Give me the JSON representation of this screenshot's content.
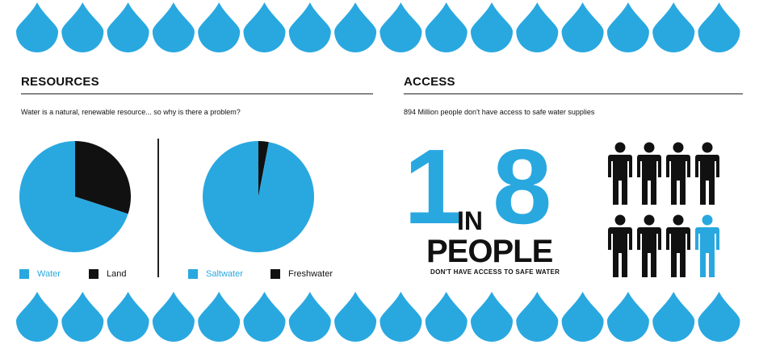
{
  "colors": {
    "water": "#29a8e0",
    "land": "#111111",
    "text": "#111111"
  },
  "icons": {
    "drop": "water-drop-icon",
    "person": "person-icon"
  },
  "resources": {
    "heading": "RESOURCES",
    "subtitle": "Water is a natural, renewable resource... so why is there a problem?"
  },
  "access": {
    "heading": "ACCESS",
    "subtitle": "894 Million people don't have access to safe water supplies",
    "stat_numerator": "1",
    "stat_in": "IN",
    "stat_denominator": "8",
    "stat_people": "PEOPLE",
    "stat_caption": "DON'T HAVE ACCESS TO SAFE WATER"
  },
  "chart_data": [
    {
      "type": "pie",
      "labels": [
        "Water",
        "Land"
      ],
      "values": [
        70,
        30
      ],
      "colors": [
        "#29a8e0",
        "#111111"
      ],
      "legend": "bottom"
    },
    {
      "type": "pie",
      "labels": [
        "Saltwater",
        "Freshwater"
      ],
      "values": [
        97,
        3
      ],
      "colors": [
        "#29a8e0",
        "#111111"
      ],
      "legend": "bottom"
    },
    {
      "type": "pictogram",
      "total": 8,
      "highlighted": 1,
      "colors": [
        "#111111",
        "#29a8e0"
      ]
    }
  ]
}
